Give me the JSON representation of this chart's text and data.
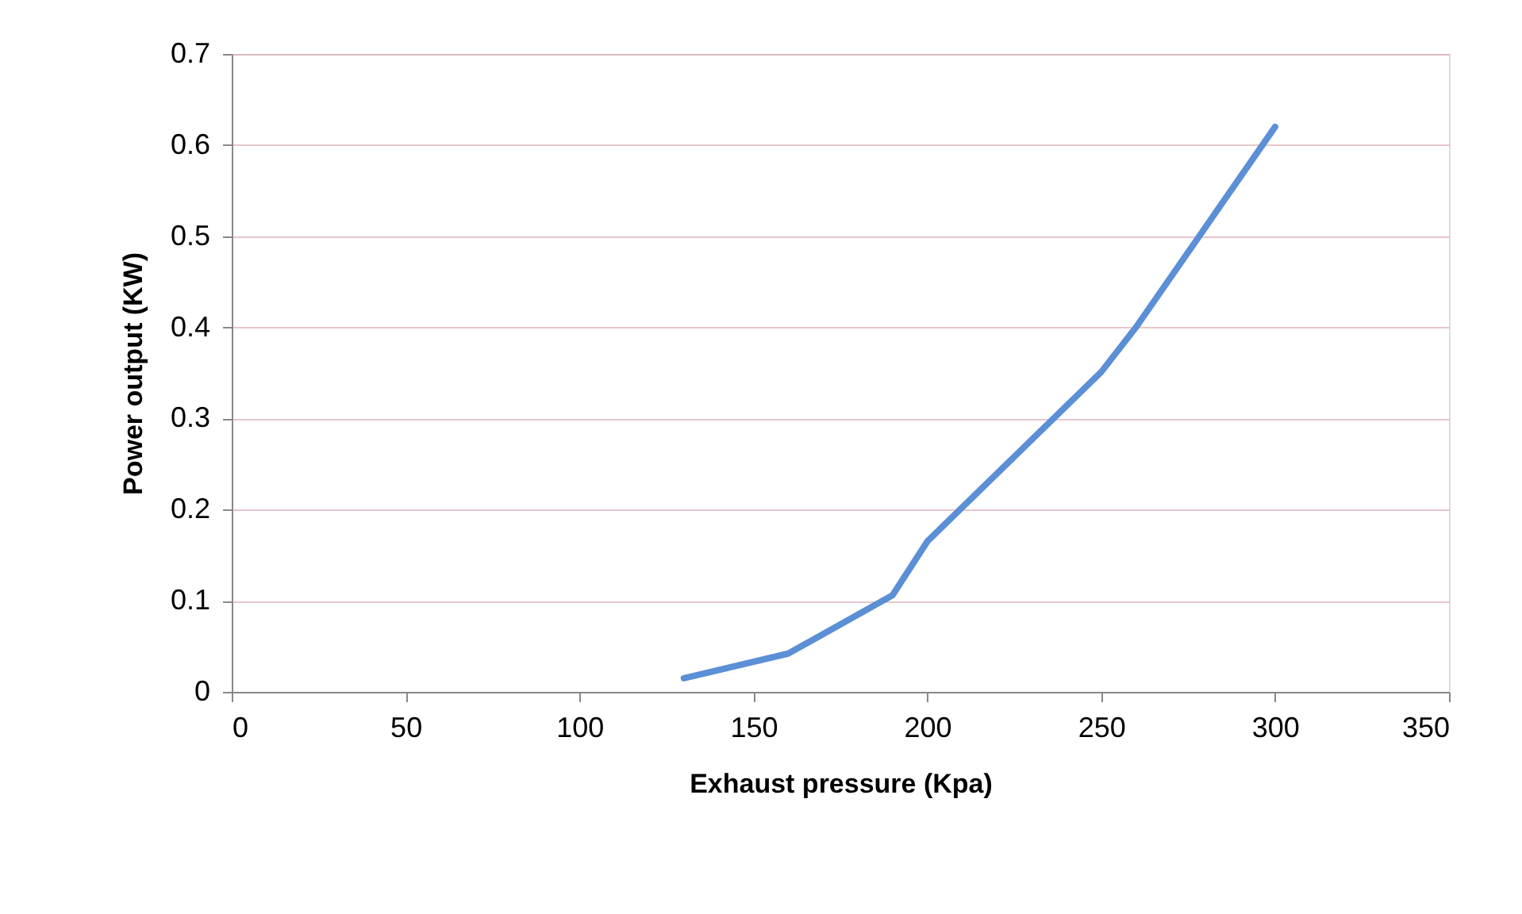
{
  "chart_data": {
    "type": "line",
    "xlabel": "Exhaust pressure (Kpa)",
    "ylabel": "Power output (KW)",
    "x": [
      130,
      160,
      190,
      200,
      250,
      260,
      300
    ],
    "series": [
      {
        "color": "#5b8fd6",
        "values": [
          0.015,
          0.042,
          0.106,
          0.165,
          0.351,
          0.4,
          0.62
        ]
      }
    ],
    "xlim": [
      0,
      350
    ],
    "xticks": [
      0,
      50,
      100,
      150,
      200,
      250,
      300,
      350
    ],
    "ylim": [
      0,
      0.7
    ],
    "yticks": [
      0,
      0.1,
      0.2,
      0.3,
      0.4,
      0.5,
      0.6,
      0.7
    ],
    "grid": "y",
    "marker": "none",
    "line_style": "solid"
  }
}
